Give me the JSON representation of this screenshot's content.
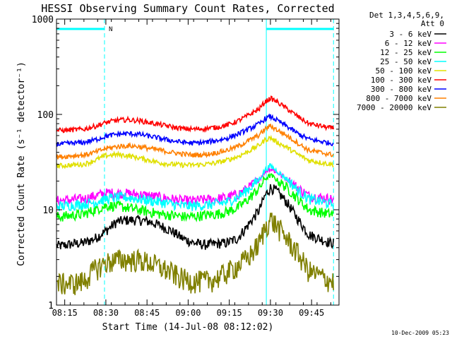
{
  "chart_data": {
    "type": "line",
    "title": "HESSI Observing Summary Count Rates, Corrected",
    "xlabel": "Start Time (14-Jul-08 08:12:02)",
    "ylabel": "Corrected Count Rate (s⁻¹ detector⁻¹)",
    "yscale": "log",
    "xlim_minutes_since_0812_02": [
      0,
      103
    ],
    "ylim": [
      1,
      1000
    ],
    "x_tick_labels": [
      "08:15",
      "08:30",
      "08:45",
      "09:00",
      "09:15",
      "09:30",
      "09:45"
    ],
    "x_tick_minutes": [
      3,
      18,
      33,
      48,
      63,
      78,
      93
    ],
    "y_tick_labels": [
      "1",
      "10",
      "100",
      "1000"
    ],
    "y_tick_values": [
      1,
      10,
      100,
      1000
    ],
    "legend_header": [
      "Det 1,3,4,5,6,9,",
      "Att 0"
    ],
    "legend_position": "right-outside",
    "annotation": {
      "text": "N",
      "color": "#00ffff"
    },
    "night_intervals_minutes": [
      [
        0,
        17.5
      ],
      [
        76.5,
        101
      ]
    ],
    "series": [
      {
        "name": "3 - 6 keV",
        "color": "#000000",
        "values": [
          4.2,
          4.4,
          4.5,
          5.0,
          6.0,
          7.5,
          7.8,
          7.8,
          7.5,
          6.8,
          6.0,
          5.0,
          4.5,
          4.3,
          4.4,
          4.5,
          5.0,
          7.0,
          10.0,
          14.0,
          17.0,
          16.0,
          12.0,
          8.0,
          5.5,
          4.5
        ]
      },
      {
        "name": "6 - 12 keV",
        "color": "#ff00ff",
        "values": [
          12.5,
          12.8,
          13.0,
          14.0,
          15.0,
          15.0,
          14.8,
          14.5,
          14.0,
          13.5,
          13.0,
          12.5,
          12.5,
          12.8,
          13.0,
          13.5,
          14.5,
          17.0,
          21.0,
          25.0,
          27.0,
          25.0,
          21.0,
          17.0,
          14.0,
          13.0
        ]
      },
      {
        "name": "12 - 25 keV",
        "color": "#00ff00",
        "values": [
          8.5,
          8.8,
          9.0,
          10.0,
          11.0,
          11.0,
          10.5,
          10.0,
          9.5,
          9.0,
          8.8,
          8.5,
          8.5,
          8.8,
          9.0,
          9.5,
          10.5,
          13.0,
          17.0,
          21.0,
          23.0,
          21.0,
          17.0,
          13.0,
          10.0,
          9.0
        ]
      },
      {
        "name": "25 - 50 keV",
        "color": "#00ffff",
        "values": [
          11.0,
          11.2,
          11.5,
          12.0,
          13.0,
          13.5,
          13.5,
          13.0,
          12.5,
          12.0,
          11.5,
          11.0,
          11.0,
          11.2,
          11.5,
          12.0,
          13.5,
          16.5,
          21.0,
          26.0,
          29.0,
          26.0,
          21.0,
          16.0,
          13.0,
          11.5
        ]
      },
      {
        "name": "50 - 100 keV",
        "color": "#e0e000",
        "values": [
          29,
          29.5,
          30,
          33,
          37,
          38,
          37,
          35,
          33,
          31,
          30,
          29.5,
          29.5,
          30,
          31,
          33,
          36,
          41,
          48,
          54,
          57,
          52,
          45,
          38,
          33,
          30
        ]
      },
      {
        "name": "100 - 300 keV",
        "color": "#ff0000",
        "values": [
          68,
          69,
          70,
          75,
          82,
          87,
          88,
          86,
          82,
          78,
          74,
          71,
          70,
          71,
          73,
          77,
          85,
          98,
          115,
          135,
          148,
          138,
          115,
          95,
          80,
          72
        ]
      },
      {
        "name": "300 - 800 keV",
        "color": "#0000ff",
        "values": [
          49,
          50,
          51,
          54,
          59,
          62,
          63,
          62,
          59,
          56,
          53,
          51,
          50,
          51,
          53,
          56,
          62,
          70,
          80,
          90,
          95,
          88,
          75,
          63,
          55,
          50
        ]
      },
      {
        "name": "800 - 7000 keV",
        "color": "#ff8000",
        "values": [
          36,
          37,
          37.5,
          40,
          44,
          46,
          47,
          46,
          44,
          42,
          40,
          38.5,
          37.5,
          38,
          39.5,
          42,
          46,
          53,
          61,
          70,
          76,
          70,
          60,
          50,
          42,
          38
        ]
      },
      {
        "name": "7000 - 20000 keV",
        "color": "#808000",
        "values": [
          1.7,
          1.7,
          1.8,
          2.4,
          2.8,
          3.0,
          3.0,
          3.0,
          2.8,
          2.5,
          2.2,
          1.9,
          1.8,
          1.8,
          1.9,
          2.2,
          2.6,
          3.2,
          4.5,
          6.5,
          8.0,
          7.0,
          5.0,
          3.5,
          2.3,
          1.8
        ]
      }
    ],
    "x_minutes": [
      2,
      6,
      10,
      14,
      18,
      22,
      26,
      30,
      34,
      38,
      42,
      46,
      50,
      54,
      58,
      62,
      66,
      70,
      74,
      76,
      78,
      80,
      84,
      88,
      92,
      100
    ]
  },
  "footer": {
    "timestamp": "10-Dec-2009 05:23"
  },
  "style": {
    "axis_color": "#000000",
    "night_color": "#00ffff",
    "background": "#ffffff"
  }
}
